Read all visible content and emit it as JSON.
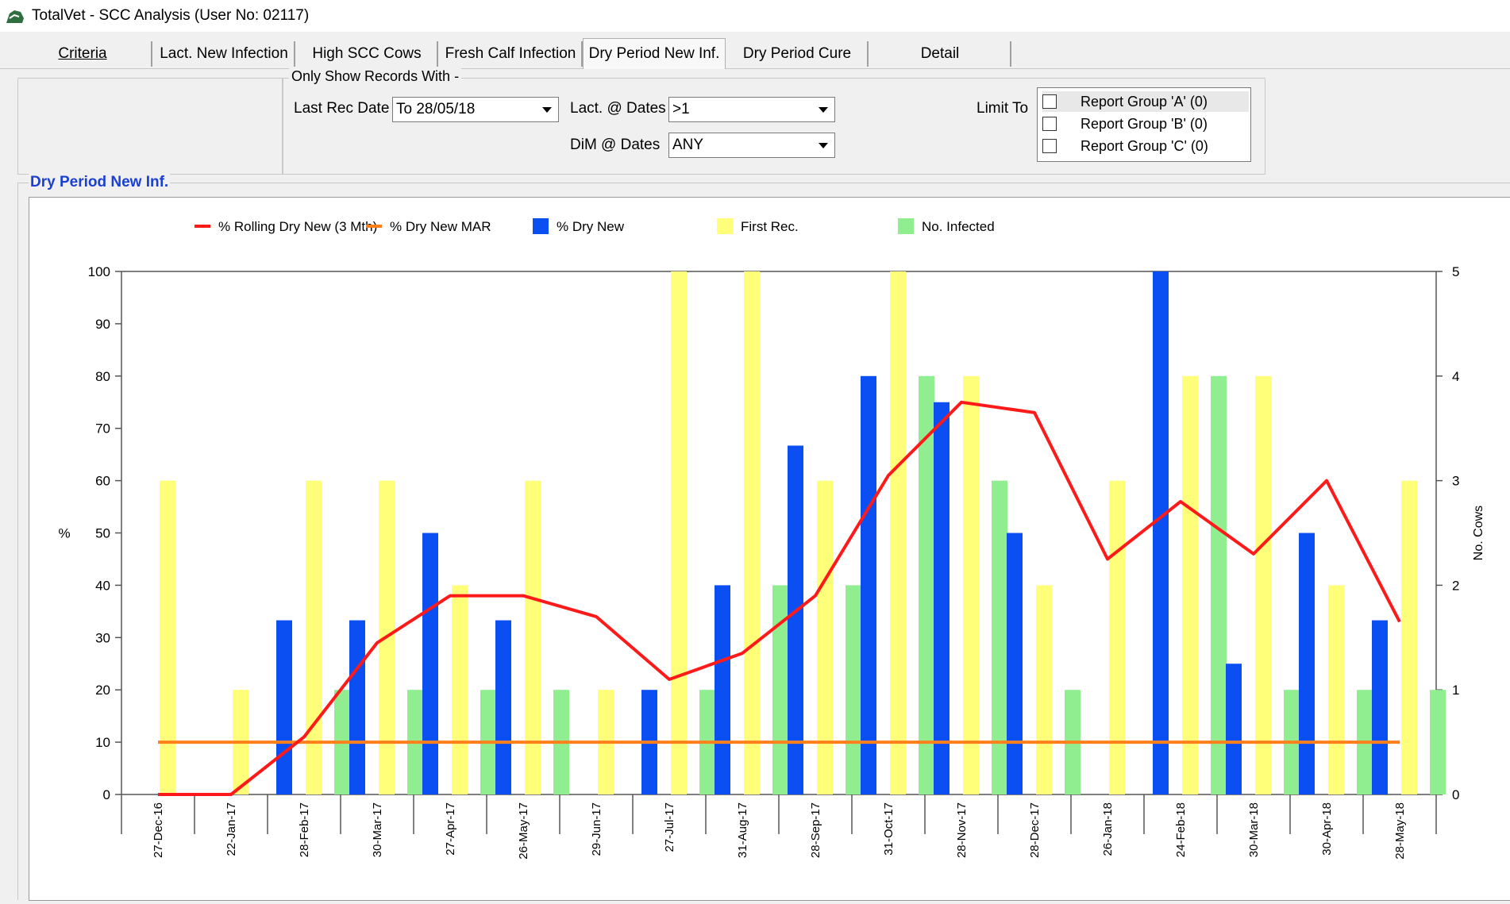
{
  "window": {
    "title": "TotalVet - SCC Analysis (User No: 02117)",
    "icon": "totalvet-app-icon"
  },
  "tabs": [
    {
      "label": "Criteria",
      "active": false
    },
    {
      "label": "Lact. New Infection",
      "active": false
    },
    {
      "label": "High SCC Cows",
      "active": false
    },
    {
      "label": "Fresh Calf Infection",
      "active": false
    },
    {
      "label": "Dry Period New Inf.",
      "active": true
    },
    {
      "label": "Dry Period Cure",
      "active": false
    },
    {
      "label": "Detail",
      "active": false
    }
  ],
  "filters": {
    "group_title": "Only Show Records With -",
    "last_rec_date": {
      "label": "Last Rec Date",
      "value": "To 28/05/18"
    },
    "lact_at_dates": {
      "label": "Lact. @ Dates",
      "value": ">1"
    },
    "dim_at_dates": {
      "label": "DiM @ Dates",
      "value": "ANY"
    },
    "limit_to": {
      "label": "Limit To",
      "options": [
        {
          "label": "Report Group 'A' (0)",
          "checked": false
        },
        {
          "label": "Report Group 'B' (0)",
          "checked": false
        },
        {
          "label": "Report Group 'C' (0)",
          "checked": false
        }
      ]
    }
  },
  "chart_section": {
    "title": "Dry Period New Inf."
  },
  "chart_data": {
    "type": "bar",
    "legend": [
      {
        "name": "% Rolling Dry New (3 Mth)",
        "kind": "line",
        "color": "#ff1a1a"
      },
      {
        "name": "% Dry New MAR",
        "kind": "line",
        "color": "#ff7f1a"
      },
      {
        "name": "% Dry New",
        "kind": "bar",
        "color": "#0b4ff2"
      },
      {
        "name": "First Rec.",
        "kind": "bar",
        "color": "#ffff7a"
      },
      {
        "name": "No. Infected",
        "kind": "bar",
        "color": "#90ee90"
      }
    ],
    "legend_placement": "top",
    "categories": [
      "27-Dec-16",
      "22-Jan-17",
      "28-Feb-17",
      "30-Mar-17",
      "27-Apr-17",
      "26-May-17",
      "29-Jun-17",
      "27-Jul-17",
      "31-Aug-17",
      "28-Sep-17",
      "31-Oct-17",
      "28-Nov-17",
      "28-Dec-17",
      "26-Jan-18",
      "24-Feb-18",
      "30-Mar-18",
      "30-Apr-18",
      "28-May-18"
    ],
    "ylabel": "%",
    "ylim": [
      0,
      100
    ],
    "yticks": [
      0,
      10,
      20,
      30,
      40,
      50,
      60,
      70,
      80,
      90,
      100
    ],
    "y2label": "No. Cows",
    "y2lim": [
      0,
      5
    ],
    "y2ticks": [
      0,
      1,
      2,
      3,
      4,
      5
    ],
    "series": [
      {
        "name": "% Dry New",
        "axis": "left",
        "values": [
          0,
          0,
          33.3,
          33.3,
          50,
          33.3,
          0,
          20,
          40,
          66.7,
          80,
          75,
          50,
          0,
          100,
          25,
          50,
          33.3
        ]
      },
      {
        "name": "First Rec.",
        "axis": "right",
        "values": [
          3,
          1,
          3,
          3,
          2,
          3,
          1,
          5,
          5,
          3,
          5,
          4,
          2,
          3,
          4,
          4,
          2,
          3
        ]
      },
      {
        "name": "No. Infected",
        "axis": "right",
        "values": [
          0,
          0,
          1,
          1,
          1,
          1,
          0,
          1,
          2,
          2,
          4,
          3,
          1,
          0,
          4,
          1,
          1,
          1
        ]
      },
      {
        "name": "% Rolling Dry New (3 Mth)",
        "axis": "left",
        "values": [
          0,
          0,
          11,
          29,
          38,
          38,
          34,
          22,
          27,
          38,
          61,
          75,
          73,
          45,
          56,
          46,
          60,
          33
        ]
      },
      {
        "name": "% Dry New MAR",
        "axis": "left",
        "values": [
          10,
          10,
          10,
          10,
          10,
          10,
          10,
          10,
          10,
          10,
          10,
          10,
          10,
          10,
          10,
          10,
          10,
          10
        ]
      }
    ],
    "grid": false
  }
}
